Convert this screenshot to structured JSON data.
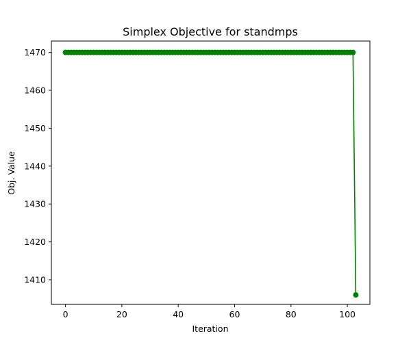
{
  "chart_data": {
    "type": "line",
    "title": "Simplex Objective for standmps",
    "xlabel": "Iteration",
    "ylabel": "Obj. Value",
    "xlim": [
      -5,
      108
    ],
    "ylim": [
      1403.5,
      1473
    ],
    "xticks": [
      0,
      20,
      40,
      60,
      80,
      100
    ],
    "yticks": [
      1410,
      1420,
      1430,
      1440,
      1450,
      1460,
      1470
    ],
    "grid": false,
    "legend": "none",
    "series": [
      {
        "color": "#008000",
        "marker": "circle",
        "x": [
          0,
          1,
          2,
          3,
          4,
          5,
          6,
          7,
          8,
          9,
          10,
          11,
          12,
          13,
          14,
          15,
          16,
          17,
          18,
          19,
          20,
          21,
          22,
          23,
          24,
          25,
          26,
          27,
          28,
          29,
          30,
          31,
          32,
          33,
          34,
          35,
          36,
          37,
          38,
          39,
          40,
          41,
          42,
          43,
          44,
          45,
          46,
          47,
          48,
          49,
          50,
          51,
          52,
          53,
          54,
          55,
          56,
          57,
          58,
          59,
          60,
          61,
          62,
          63,
          64,
          65,
          66,
          67,
          68,
          69,
          70,
          71,
          72,
          73,
          74,
          75,
          76,
          77,
          78,
          79,
          80,
          81,
          82,
          83,
          84,
          85,
          86,
          87,
          88,
          89,
          90,
          91,
          92,
          93,
          94,
          95,
          96,
          97,
          98,
          99,
          100,
          101,
          102,
          103
        ],
        "y": [
          1470,
          1470,
          1470,
          1470,
          1470,
          1470,
          1470,
          1470,
          1470,
          1470,
          1470,
          1470,
          1470,
          1470,
          1470,
          1470,
          1470,
          1470,
          1470,
          1470,
          1470,
          1470,
          1470,
          1470,
          1470,
          1470,
          1470,
          1470,
          1470,
          1470,
          1470,
          1470,
          1470,
          1470,
          1470,
          1470,
          1470,
          1470,
          1470,
          1470,
          1470,
          1470,
          1470,
          1470,
          1470,
          1470,
          1470,
          1470,
          1470,
          1470,
          1470,
          1470,
          1470,
          1470,
          1470,
          1470,
          1470,
          1470,
          1470,
          1470,
          1470,
          1470,
          1470,
          1470,
          1470,
          1470,
          1470,
          1470,
          1470,
          1470,
          1470,
          1470,
          1470,
          1470,
          1470,
          1470,
          1470,
          1470,
          1470,
          1470,
          1470,
          1470,
          1470,
          1470,
          1470,
          1470,
          1470,
          1470,
          1470,
          1470,
          1470,
          1470,
          1470,
          1470,
          1470,
          1470,
          1470,
          1470,
          1470,
          1470,
          1470,
          1470,
          1470,
          1406
        ]
      }
    ]
  }
}
